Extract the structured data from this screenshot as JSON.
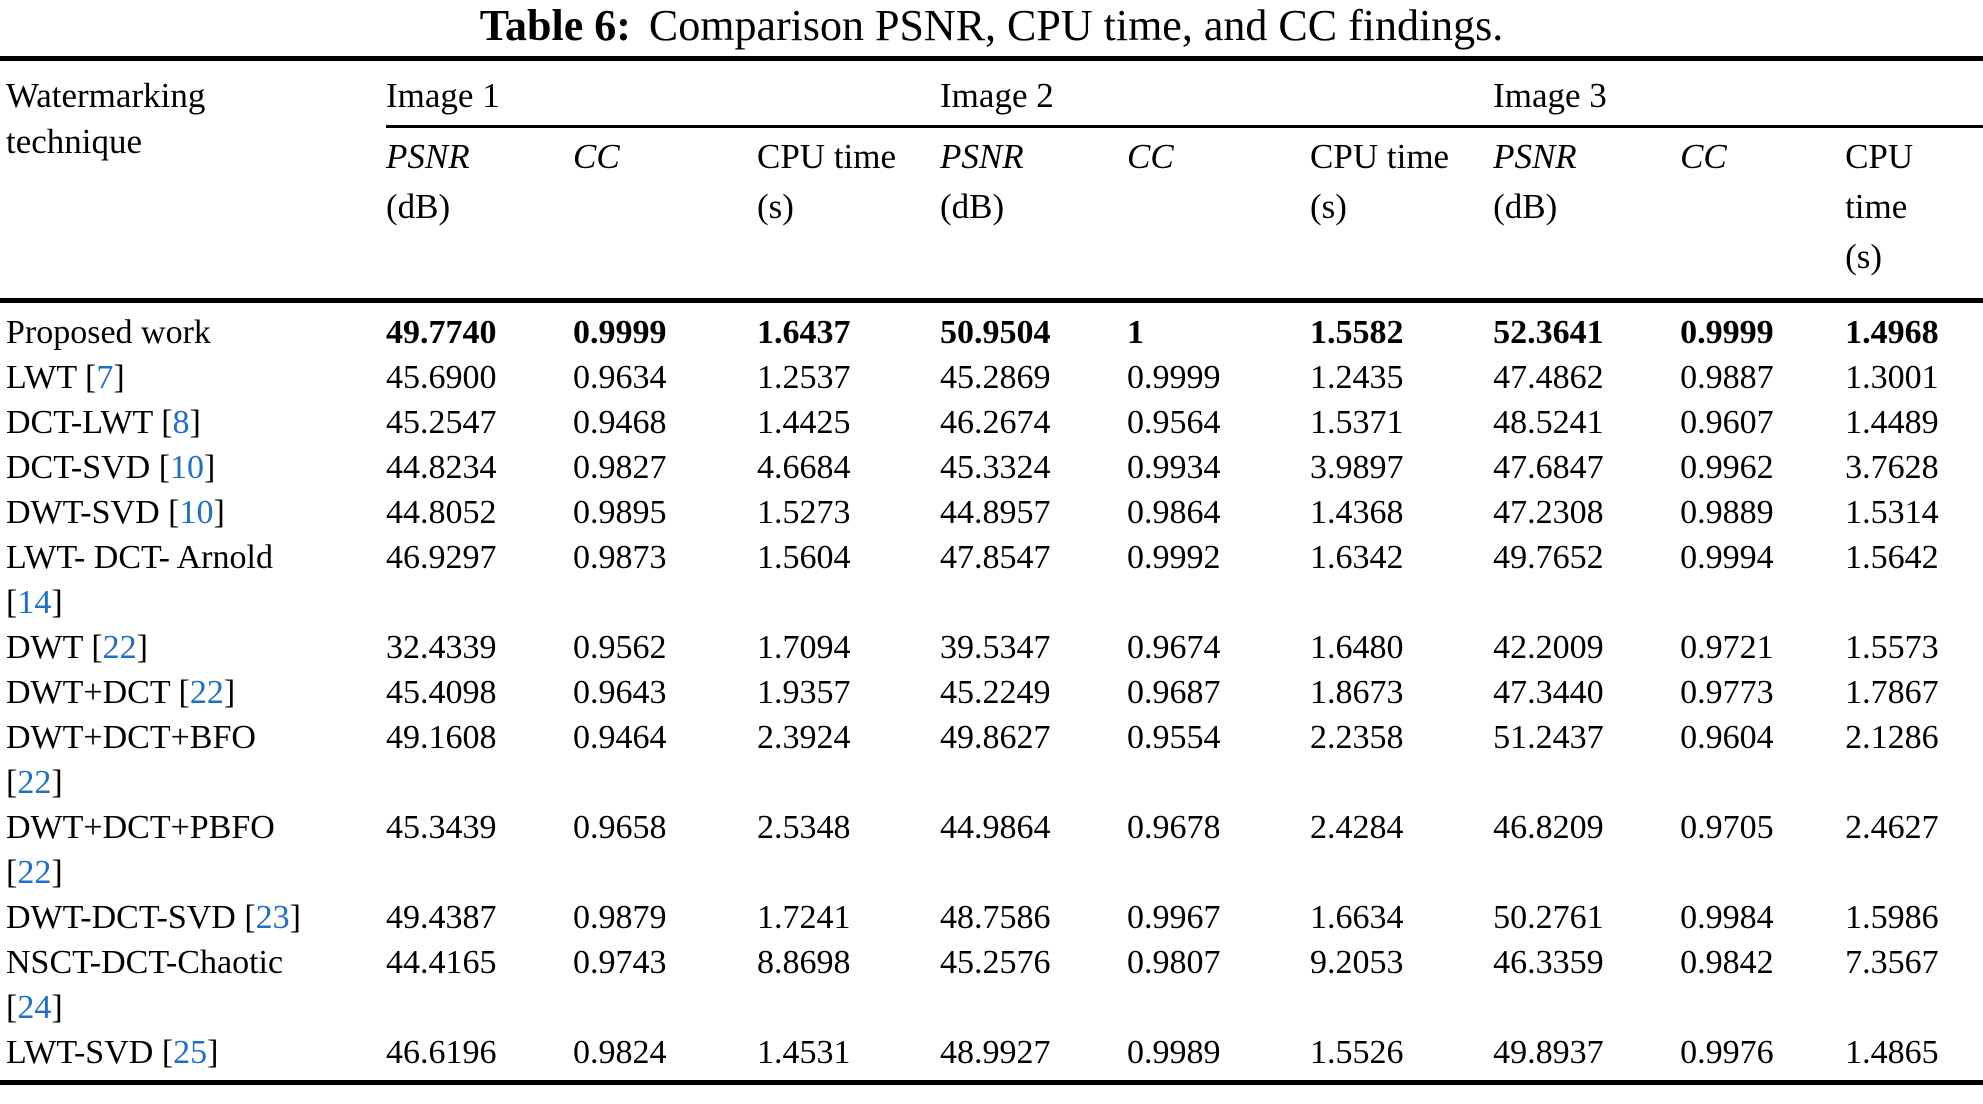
{
  "caption": {
    "label": "Table 6:",
    "text": "Comparison PSNR, CPU time, and CC findings."
  },
  "colors": {
    "citation_link": "#1d6fc8",
    "text": "#000000",
    "background": "#ffffff"
  },
  "header": {
    "col1_line1": "Watermarking",
    "col1_line2": "technique",
    "groups": [
      "Image 1",
      "Image 2",
      "Image 3"
    ],
    "sub": {
      "psnr": "PSNR",
      "psnr_unit": "(dB)",
      "cc": "CC",
      "cpu": "CPU time",
      "cpu_unit": "(s)",
      "cpu3_line1": "CPU",
      "cpu3_line2": "time",
      "cpu3_line3": "(s)"
    }
  },
  "table": {
    "rows": [
      {
        "technique": "Proposed work",
        "citation": null,
        "wrap": false,
        "bold": true,
        "values": [
          "49.7740",
          "0.9999",
          "1.6437",
          "50.9504",
          "1",
          "1.5582",
          "52.3641",
          "0.9999",
          "1.4968"
        ]
      },
      {
        "technique": "LWT",
        "citation": "7",
        "wrap": false,
        "bold": false,
        "values": [
          "45.6900",
          "0.9634",
          "1.2537",
          "45.2869",
          "0.9999",
          "1.2435",
          "47.4862",
          "0.9887",
          "1.3001"
        ]
      },
      {
        "technique": "DCT-LWT",
        "citation": "8",
        "wrap": false,
        "bold": false,
        "values": [
          "45.2547",
          "0.9468",
          "1.4425",
          "46.2674",
          "0.9564",
          "1.5371",
          "48.5241",
          "0.9607",
          "1.4489"
        ]
      },
      {
        "technique": "DCT-SVD",
        "citation": "10",
        "wrap": false,
        "bold": false,
        "values": [
          "44.8234",
          "0.9827",
          "4.6684",
          "45.3324",
          "0.9934",
          "3.9897",
          "47.6847",
          "0.9962",
          "3.7628"
        ]
      },
      {
        "technique": "DWT-SVD",
        "citation": "10",
        "wrap": false,
        "bold": false,
        "values": [
          "44.8052",
          "0.9895",
          "1.5273",
          "44.8957",
          "0.9864",
          "1.4368",
          "47.2308",
          "0.9889",
          "1.5314"
        ]
      },
      {
        "technique": "LWT- DCT- Arnold",
        "citation": "14",
        "wrap": true,
        "bold": false,
        "values": [
          "46.9297",
          "0.9873",
          "1.5604",
          "47.8547",
          "0.9992",
          "1.6342",
          "49.7652",
          "0.9994",
          "1.5642"
        ]
      },
      {
        "technique": "DWT",
        "citation": "22",
        "wrap": false,
        "bold": false,
        "values": [
          "32.4339",
          "0.9562",
          "1.7094",
          "39.5347",
          "0.9674",
          "1.6480",
          "42.2009",
          "0.9721",
          "1.5573"
        ]
      },
      {
        "technique": "DWT+DCT",
        "citation": "22",
        "wrap": false,
        "bold": false,
        "values": [
          "45.4098",
          "0.9643",
          "1.9357",
          "45.2249",
          "0.9687",
          "1.8673",
          "47.3440",
          "0.9773",
          "1.7867"
        ]
      },
      {
        "technique": "DWT+DCT+BFO",
        "citation": "22",
        "wrap": true,
        "bold": false,
        "values": [
          "49.1608",
          "0.9464",
          "2.3924",
          "49.8627",
          "0.9554",
          "2.2358",
          "51.2437",
          "0.9604",
          "2.1286"
        ]
      },
      {
        "technique": "DWT+DCT+PBFO",
        "citation": "22",
        "wrap": true,
        "bold": false,
        "values": [
          "45.3439",
          "0.9658",
          "2.5348",
          "44.9864",
          "0.9678",
          "2.4284",
          "46.8209",
          "0.9705",
          "2.4627"
        ]
      },
      {
        "technique": "DWT-DCT-SVD",
        "citation": "23",
        "wrap": false,
        "bold": false,
        "values": [
          "49.4387",
          "0.9879",
          "1.7241",
          "48.7586",
          "0.9967",
          "1.6634",
          "50.2761",
          "0.9984",
          "1.5986"
        ]
      },
      {
        "technique": "NSCT-DCT-Chaotic",
        "citation": "24",
        "wrap": true,
        "bold": false,
        "values": [
          "44.4165",
          "0.9743",
          "8.8698",
          "45.2576",
          "0.9807",
          "9.2053",
          "46.3359",
          "0.9842",
          "7.3567"
        ]
      },
      {
        "technique": "LWT-SVD",
        "citation": "25",
        "wrap": false,
        "bold": false,
        "values": [
          "46.6196",
          "0.9824",
          "1.4531",
          "48.9927",
          "0.9989",
          "1.5526",
          "49.8937",
          "0.9976",
          "1.4865"
        ]
      }
    ]
  }
}
